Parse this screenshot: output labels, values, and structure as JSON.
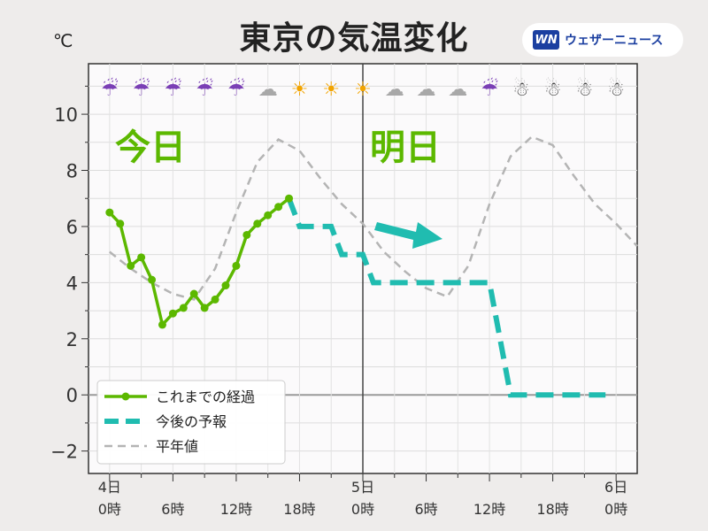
{
  "title": "東京の気温変化",
  "unit": "℃",
  "brand": {
    "logo": "WN",
    "name": "ウェザーニュース"
  },
  "colors": {
    "actual": "#5cb800",
    "forecast": "#20bcb0",
    "normal": "#b4b4b4",
    "arrow": "#20bcb0",
    "zero_line": "#9a9a9a",
    "day_divider": "#444444"
  },
  "day_labels": [
    "今日",
    "明日"
  ],
  "legend": {
    "actual": "これまでの経過",
    "forecast": "今後の予報",
    "normal": "平年値"
  },
  "x_ticks": [
    {
      "h": 0,
      "day": "4日",
      "time": "0時"
    },
    {
      "h": 6,
      "time": "6時"
    },
    {
      "h": 12,
      "time": "12時"
    },
    {
      "h": 18,
      "time": "18時"
    },
    {
      "h": 24,
      "day": "5日",
      "time": "0時"
    },
    {
      "h": 30,
      "time": "6時"
    },
    {
      "h": 36,
      "time": "12時"
    },
    {
      "h": 42,
      "time": "18時"
    },
    {
      "h": 48,
      "day": "6日",
      "time": "0時"
    }
  ],
  "weather_icons": [
    {
      "h": 0,
      "icon": "umbrella-rain-icon",
      "glyph": "☔"
    },
    {
      "h": 3,
      "icon": "umbrella-rain-icon",
      "glyph": "☔"
    },
    {
      "h": 6,
      "icon": "umbrella-rain-icon",
      "glyph": "☔"
    },
    {
      "h": 9,
      "icon": "umbrella-rain-icon",
      "glyph": "☔"
    },
    {
      "h": 12,
      "icon": "umbrella-rain-icon",
      "glyph": "☔"
    },
    {
      "h": 15,
      "icon": "cloud-icon",
      "glyph": "☁"
    },
    {
      "h": 18,
      "icon": "sun-icon",
      "glyph": "☀"
    },
    {
      "h": 21,
      "icon": "sun-icon",
      "glyph": "☀"
    },
    {
      "h": 24,
      "icon": "sun-icon",
      "glyph": "☀"
    },
    {
      "h": 27,
      "icon": "cloud-icon",
      "glyph": "☁"
    },
    {
      "h": 30,
      "icon": "cloud-icon",
      "glyph": "☁"
    },
    {
      "h": 33,
      "icon": "cloud-icon",
      "glyph": "☁"
    },
    {
      "h": 36,
      "icon": "umbrella-rain-icon",
      "glyph": "☔"
    },
    {
      "h": 39,
      "icon": "snowman-icon",
      "glyph": "☃"
    },
    {
      "h": 42,
      "icon": "snowman-icon",
      "glyph": "☃"
    },
    {
      "h": 45,
      "icon": "snowman-icon",
      "glyph": "☃"
    },
    {
      "h": 48,
      "icon": "snowman-icon",
      "glyph": "☃"
    }
  ],
  "chart_data": {
    "type": "line",
    "title": "東京の気温変化",
    "ylabel": "℃",
    "xlabel": "",
    "ylim": [
      -2.8,
      11.8
    ],
    "xlim": [
      -2,
      50
    ],
    "yticks": [
      -2,
      0,
      2,
      4,
      6,
      8,
      10
    ],
    "grid": true,
    "legend_position": "bottom-left",
    "series": [
      {
        "name": "これまでの経過",
        "style": "solid-markers",
        "points": [
          [
            0,
            6.5
          ],
          [
            1,
            6.1
          ],
          [
            2,
            4.6
          ],
          [
            3,
            4.9
          ],
          [
            4,
            4.1
          ],
          [
            5,
            2.5
          ],
          [
            6,
            2.9
          ],
          [
            7,
            3.1
          ],
          [
            8,
            3.6
          ],
          [
            9,
            3.1
          ],
          [
            10,
            3.4
          ],
          [
            11,
            3.9
          ],
          [
            12,
            4.6
          ],
          [
            13,
            5.7
          ],
          [
            14,
            6.1
          ],
          [
            15,
            6.4
          ],
          [
            16,
            6.7
          ],
          [
            17,
            7.0
          ]
        ]
      },
      {
        "name": "今後の予報",
        "style": "dashed-thick",
        "points": [
          [
            17,
            7.0
          ],
          [
            18,
            6.0
          ],
          [
            19,
            6.0
          ],
          [
            20,
            6.0
          ],
          [
            21,
            6.0
          ],
          [
            22,
            5.0
          ],
          [
            23,
            5.0
          ],
          [
            24,
            5.0
          ],
          [
            25,
            4.0
          ],
          [
            26,
            4.0
          ],
          [
            27,
            4.0
          ],
          [
            28,
            4.0
          ],
          [
            29,
            4.0
          ],
          [
            30,
            4.0
          ],
          [
            31,
            4.0
          ],
          [
            32,
            4.0
          ],
          [
            33,
            4.0
          ],
          [
            34,
            4.0
          ],
          [
            35,
            4.0
          ],
          [
            36,
            4.0
          ],
          [
            37,
            2.0
          ],
          [
            38,
            0.0
          ],
          [
            39,
            0.0
          ],
          [
            40,
            0.0
          ],
          [
            41,
            0.0
          ],
          [
            42,
            0.0
          ],
          [
            43,
            0.0
          ],
          [
            44,
            0.0
          ],
          [
            45,
            0.0
          ],
          [
            46,
            0.0
          ],
          [
            47,
            0.0
          ]
        ]
      },
      {
        "name": "平年値",
        "style": "dashed-thin",
        "points": [
          [
            0,
            5.1
          ],
          [
            2,
            4.5
          ],
          [
            4,
            4.0
          ],
          [
            6,
            3.6
          ],
          [
            8,
            3.4
          ],
          [
            10,
            4.5
          ],
          [
            12,
            6.5
          ],
          [
            14,
            8.3
          ],
          [
            16,
            9.1
          ],
          [
            18,
            8.7
          ],
          [
            20,
            7.7
          ],
          [
            22,
            6.8
          ],
          [
            24,
            6.1
          ],
          [
            26,
            5.1
          ],
          [
            28,
            4.4
          ],
          [
            30,
            3.8
          ],
          [
            32,
            3.5
          ],
          [
            34,
            4.6
          ],
          [
            36,
            6.8
          ],
          [
            38,
            8.5
          ],
          [
            40,
            9.2
          ],
          [
            42,
            8.9
          ],
          [
            44,
            7.8
          ],
          [
            46,
            6.8
          ],
          [
            48,
            6.1
          ],
          [
            50,
            5.3
          ]
        ]
      }
    ]
  }
}
